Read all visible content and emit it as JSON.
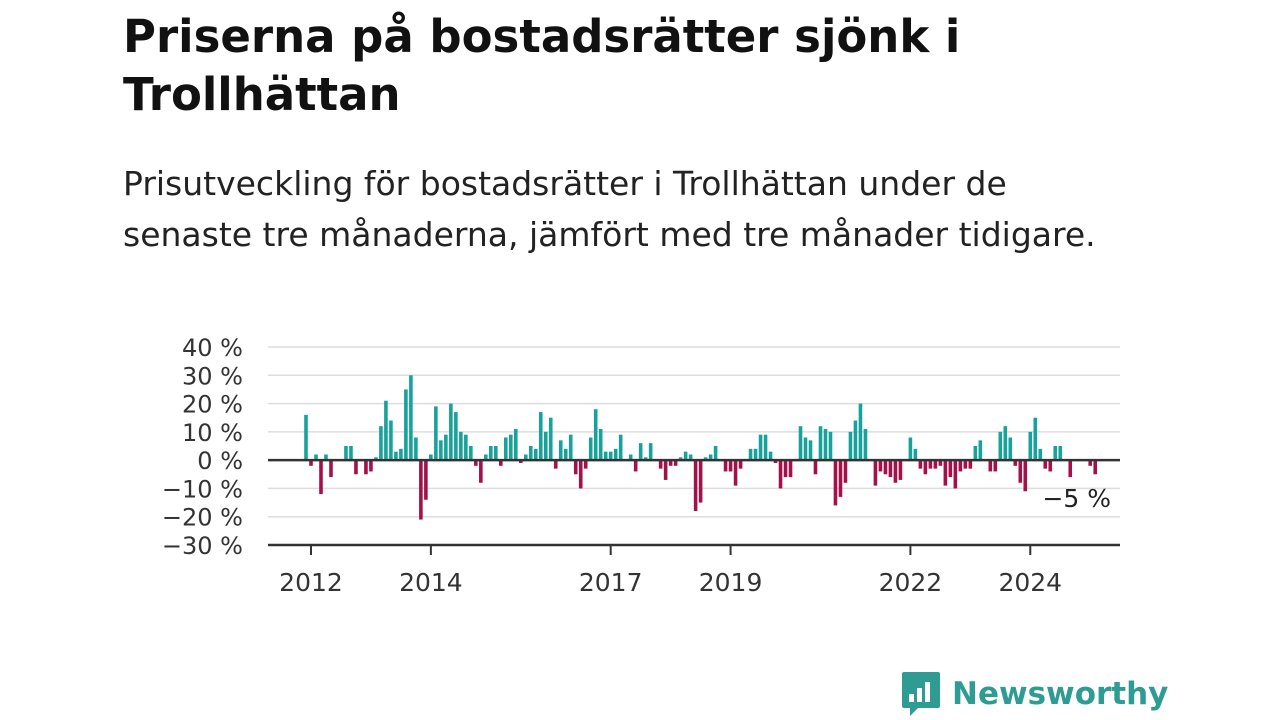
{
  "title": "Priserna på bostadsrätter sjönk i Trollhättan",
  "subtitle": "Prisutveckling för bostadsrätter i Trollhättan under de senaste tre månaderna, jämfört med tre månader tidigare.",
  "brand": {
    "name": "Newsworthy"
  },
  "colors": {
    "positive": "#17a39b",
    "negative": "#a3114a",
    "grid": "#dddddd",
    "axis": "#333333",
    "brand": "#2e9c93"
  },
  "chart_data": {
    "type": "bar",
    "title": "Priserna på bostadsrätter sjönk i Trollhättan",
    "xlabel": "",
    "ylabel": "",
    "ylim": [
      -30,
      40
    ],
    "y_ticks": [
      40,
      30,
      20,
      10,
      0,
      -10,
      -20,
      -30
    ],
    "y_tick_labels": [
      "40 %",
      "30 %",
      "20 %",
      "10 %",
      "0 %",
      "−10 %",
      "−20 %",
      "−30 %"
    ],
    "x_ticks": [
      {
        "label": "2012",
        "index": 1
      },
      {
        "label": "2014",
        "index": 25
      },
      {
        "label": "2017",
        "index": 61
      },
      {
        "label": "2019",
        "index": 85
      },
      {
        "label": "2022",
        "index": 121
      },
      {
        "label": "2024",
        "index": 145
      }
    ],
    "grid": true,
    "start": "2011-12",
    "frequency": "monthly",
    "last_value_label": "−5 %",
    "values": [
      16,
      -2,
      2,
      -12,
      2,
      -6,
      0,
      0,
      5,
      5,
      -5,
      0,
      -5,
      -4,
      1,
      12,
      21,
      14,
      3,
      4,
      25,
      30,
      8,
      -21,
      -14,
      2,
      19,
      7,
      9,
      20,
      17,
      10,
      9,
      5,
      -2,
      -8,
      2,
      5,
      5,
      -2,
      8,
      9,
      11,
      -1,
      2,
      5,
      4,
      17,
      10,
      15,
      -3,
      7,
      4,
      9,
      -5,
      -10,
      -3,
      8,
      18,
      11,
      3,
      3,
      4,
      9,
      0,
      2,
      -4,
      6,
      1,
      6,
      0,
      -3,
      -7,
      -2,
      -2,
      1,
      3,
      2,
      -18,
      -15,
      1,
      2,
      5,
      0,
      -4,
      -4,
      -9,
      -3,
      0,
      4,
      4,
      9,
      9,
      3,
      -1,
      -10,
      -6,
      -6,
      0,
      12,
      8,
      7,
      -5,
      12,
      11,
      10,
      -16,
      -13,
      -8,
      10,
      14,
      20,
      11,
      0,
      -9,
      -4,
      -5,
      -6,
      -8,
      -7,
      0,
      8,
      4,
      -3,
      -5,
      -3,
      -3,
      -2,
      -9,
      -6,
      -10,
      -4,
      -3,
      -3,
      5,
      7,
      0,
      -4,
      -4,
      10,
      12,
      8,
      -2,
      -8,
      -11,
      10,
      15,
      4,
      -3,
      -4,
      5,
      5,
      0,
      -6,
      0,
      0,
      0,
      -2,
      -5
    ]
  }
}
